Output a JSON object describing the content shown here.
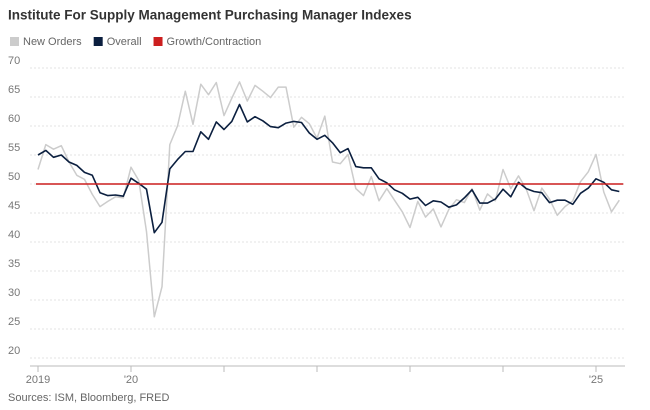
{
  "chart_data": {
    "type": "line",
    "title": "Institute For Supply Management Purchasing Manager Indexes",
    "source": "Sources: ISM, Bloomberg, FRED",
    "categories": [
      "2019",
      null,
      null,
      null,
      null,
      null,
      null,
      null,
      null,
      null,
      null,
      null,
      "'20",
      null,
      null,
      null,
      null,
      null,
      null,
      null,
      null,
      null,
      null,
      null,
      null,
      null,
      null,
      null,
      null,
      null,
      null,
      null,
      null,
      null,
      null,
      null,
      null,
      null,
      null,
      null,
      null,
      null,
      null,
      null,
      null,
      null,
      null,
      null,
      null,
      null,
      null,
      null,
      null,
      null,
      null,
      null,
      null,
      null,
      null,
      null,
      null,
      null,
      null,
      null,
      null,
      null,
      null,
      null,
      null,
      null,
      null,
      null,
      "'25",
      null,
      null,
      null
    ],
    "series": [
      {
        "name": "New Orders",
        "color": "#cccccc",
        "values": [
          52.5,
          56.8,
          56.0,
          56.6,
          53.8,
          51.5,
          50.8,
          48.2,
          46.1,
          47.0,
          47.8,
          47.6,
          52.9,
          50.6,
          41.8,
          27.1,
          32.3,
          56.8,
          60.0,
          66.0,
          60.3,
          67.2,
          65.4,
          67.5,
          61.8,
          64.8,
          67.6,
          64.3,
          67.0,
          66.0,
          64.9,
          66.7,
          66.7,
          59.8,
          61.5,
          60.4,
          57.9,
          61.7,
          53.8,
          53.5,
          55.1,
          49.2,
          48.0,
          51.3,
          47.1,
          49.2,
          47.2,
          45.2,
          42.5,
          47.0,
          44.3,
          45.7,
          42.6,
          45.6,
          47.3,
          46.8,
          49.2,
          45.5,
          48.3,
          47.1,
          52.5,
          49.2,
          51.4,
          49.1,
          45.4,
          49.3,
          47.4,
          44.6,
          46.1,
          47.1,
          50.4,
          52.1,
          55.1,
          48.6,
          45.2,
          47.2
        ]
      },
      {
        "name": "Overall",
        "color": "#0b1f3f",
        "values": [
          55.0,
          55.8,
          54.6,
          55.0,
          53.8,
          53.2,
          52.0,
          51.5,
          48.5,
          48.0,
          48.1,
          47.9,
          51.0,
          50.1,
          49.1,
          41.6,
          43.4,
          52.6,
          54.2,
          55.6,
          55.6,
          59.0,
          57.7,
          60.7,
          59.4,
          60.8,
          63.7,
          60.7,
          61.6,
          60.9,
          59.9,
          59.7,
          60.5,
          60.8,
          60.6,
          58.8,
          57.7,
          58.4,
          57.1,
          55.4,
          56.1,
          53.0,
          52.8,
          52.8,
          50.9,
          50.2,
          49.0,
          48.4,
          47.4,
          47.7,
          46.3,
          47.1,
          46.9,
          46.0,
          46.4,
          47.6,
          49.0,
          46.7,
          46.7,
          47.4,
          49.1,
          47.8,
          50.3,
          49.2,
          48.7,
          48.5,
          46.8,
          47.2,
          47.2,
          46.5,
          48.4,
          49.3,
          50.9,
          50.3,
          49.0,
          48.7
        ]
      }
    ],
    "reference_line": {
      "name": "Growth/Contraction",
      "value": 50,
      "color": "#cc1f1f"
    },
    "ylim": [
      20,
      70
    ],
    "yticks": [
      20,
      25,
      30,
      35,
      40,
      45,
      50,
      55,
      60,
      65,
      70
    ],
    "grid": true
  }
}
